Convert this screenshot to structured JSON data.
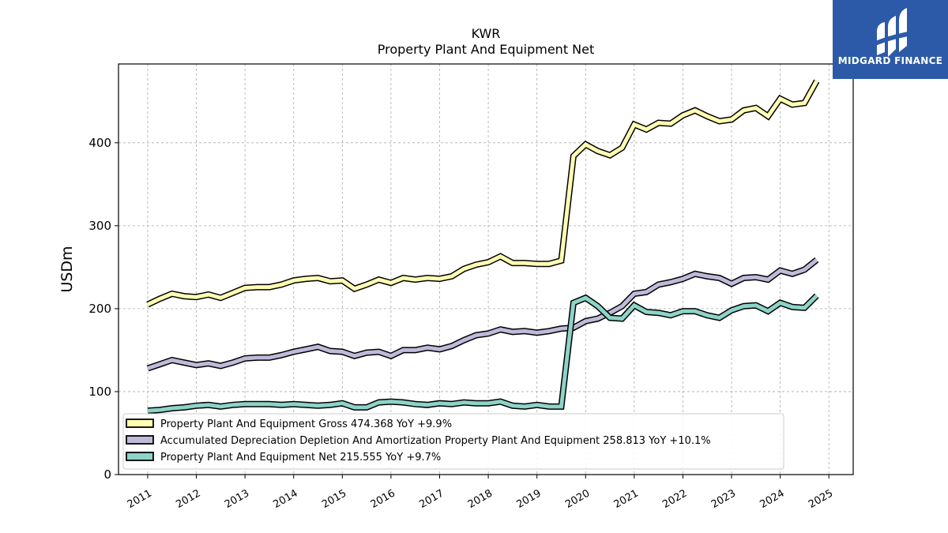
{
  "logo": {
    "text": "MIDGARD FINANCE",
    "bg_color": "#2d5aa8"
  },
  "chart_data": {
    "type": "line",
    "title": "KWR",
    "subtitle": "Property Plant And Equipment Net",
    "ylabel": "USDm",
    "xlabel": "",
    "xlim": [
      2010.4,
      2025.5
    ],
    "ylim": [
      0,
      495
    ],
    "yticks": [
      0,
      100,
      200,
      300,
      400
    ],
    "xticks": [
      2011,
      2012,
      2013,
      2014,
      2015,
      2016,
      2017,
      2018,
      2019,
      2020,
      2021,
      2022,
      2023,
      2024,
      2025
    ],
    "grid": true,
    "legend_position": "lower-left",
    "x": [
      2011.0,
      2011.25,
      2011.5,
      2011.75,
      2012.0,
      2012.25,
      2012.5,
      2012.75,
      2013.0,
      2013.25,
      2013.5,
      2013.75,
      2014.0,
      2014.25,
      2014.5,
      2014.75,
      2015.0,
      2015.25,
      2015.5,
      2015.75,
      2016.0,
      2016.25,
      2016.5,
      2016.75,
      2017.0,
      2017.25,
      2017.5,
      2017.75,
      2018.0,
      2018.25,
      2018.5,
      2018.75,
      2019.0,
      2019.25,
      2019.5,
      2019.75,
      2020.0,
      2020.25,
      2020.5,
      2020.75,
      2021.0,
      2021.25,
      2021.5,
      2021.75,
      2022.0,
      2022.25,
      2022.5,
      2022.75,
      2023.0,
      2023.25,
      2023.5,
      2023.75,
      2024.0,
      2024.25,
      2024.5,
      2024.75
    ],
    "series": [
      {
        "name": "Property Plant And Equipment Gross",
        "legend_label": "Property Plant And Equipment Gross  474.368 YoY +9.9%",
        "color": "#ffffb3",
        "values": [
          205,
          212,
          218,
          215,
          214,
          217,
          213,
          219,
          225,
          226,
          226,
          229,
          234,
          236,
          237,
          233,
          234,
          224,
          229,
          235,
          231,
          237,
          235,
          237,
          236,
          239,
          248,
          253,
          256,
          263,
          255,
          255,
          254,
          254,
          258,
          384,
          398,
          390,
          385,
          394,
          422,
          416,
          424,
          423,
          433,
          439,
          432,
          426,
          428,
          439,
          442,
          432,
          453,
          446,
          448,
          474.4
        ]
      },
      {
        "name": "Accumulated Depreciation Depletion And Amortization Property Plant And Equipment",
        "legend_label": "Accumulated Depreciation Depletion And Amortization Property Plant And Equipment  258.813 YoY +10.1%",
        "color": "#bebada",
        "values": [
          128,
          133,
          138,
          135,
          132,
          134,
          131,
          135,
          140,
          141,
          141,
          144,
          148,
          151,
          154,
          149,
          148,
          143,
          147,
          148,
          143,
          150,
          150,
          153,
          151,
          155,
          162,
          168,
          170,
          175,
          172,
          173,
          171,
          173,
          176,
          177,
          185,
          188,
          195,
          203,
          218,
          220,
          229,
          232,
          236,
          242,
          239,
          237,
          230,
          237,
          238,
          235,
          246,
          242,
          247,
          258.8
        ]
      },
      {
        "name": "Property Plant And Equipment Net",
        "legend_label": "Property Plant And Equipment Net  215.555 YoY +9.7%",
        "color": "#8dd3c7",
        "values": [
          77,
          78,
          80,
          81,
          83,
          84,
          82,
          84,
          85,
          85,
          85,
          84,
          85,
          84,
          83,
          84,
          86,
          81,
          81,
          87,
          88,
          87,
          85,
          84,
          86,
          85,
          87,
          86,
          86,
          88,
          83,
          82,
          84,
          82,
          82,
          207,
          213,
          203,
          189,
          188,
          204,
          196,
          195,
          192,
          197,
          197,
          192,
          189,
          198,
          203,
          204,
          197,
          207,
          202,
          201,
          215.6
        ]
      }
    ]
  }
}
